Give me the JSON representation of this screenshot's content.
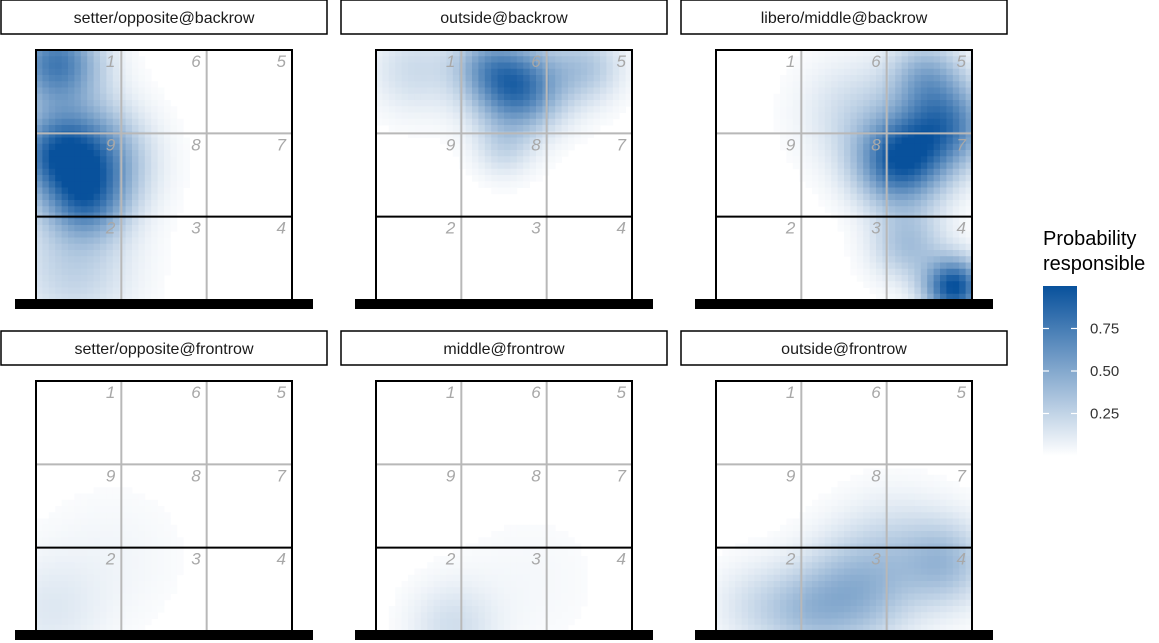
{
  "chart_data": {
    "type": "heatmap",
    "legend": {
      "title_line1": "Probability",
      "title_line2": "responsible",
      "ticks": [
        0.25,
        0.5,
        0.75
      ],
      "tick_labels": [
        "0.25",
        "0.50",
        "0.75"
      ],
      "range": [
        0,
        1
      ],
      "color_low": "#ffffff",
      "color_high": "#08519c"
    },
    "zones": [
      {
        "label": "1",
        "row": 0,
        "col": 0
      },
      {
        "label": "6",
        "row": 0,
        "col": 1
      },
      {
        "label": "5",
        "row": 0,
        "col": 2
      },
      {
        "label": "9",
        "row": 1,
        "col": 0
      },
      {
        "label": "8",
        "row": 1,
        "col": 1
      },
      {
        "label": "7",
        "row": 1,
        "col": 2
      },
      {
        "label": "2",
        "row": 2,
        "col": 0
      },
      {
        "label": "3",
        "row": 2,
        "col": 1
      },
      {
        "label": "4",
        "row": 2,
        "col": 2
      }
    ],
    "panels": [
      {
        "title": "setter/opposite@backrow",
        "hotspots": [
          {
            "x": 0.08,
            "y": 0.95,
            "s": 0.12,
            "v": 0.75
          },
          {
            "x": 0.18,
            "y": 0.55,
            "s": 0.15,
            "v": 0.95
          },
          {
            "x": 0.05,
            "y": 0.6,
            "s": 0.1,
            "v": 0.3
          },
          {
            "x": 0.2,
            "y": 0.38,
            "s": 0.1,
            "v": 0.35
          },
          {
            "x": 0.15,
            "y": 0.12,
            "s": 0.16,
            "v": 0.25
          }
        ]
      },
      {
        "title": "outside@backrow",
        "hotspots": [
          {
            "x": 0.55,
            "y": 0.85,
            "s": 0.12,
            "v": 0.85
          },
          {
            "x": 0.42,
            "y": 0.95,
            "s": 0.09,
            "v": 0.3
          },
          {
            "x": 0.82,
            "y": 0.93,
            "s": 0.1,
            "v": 0.3
          },
          {
            "x": 0.15,
            "y": 0.92,
            "s": 0.12,
            "v": 0.2
          },
          {
            "x": 0.5,
            "y": 0.6,
            "s": 0.08,
            "v": 0.18
          }
        ]
      },
      {
        "title": "libero/middle@backrow",
        "hotspots": [
          {
            "x": 0.72,
            "y": 0.55,
            "s": 0.12,
            "v": 0.9
          },
          {
            "x": 0.9,
            "y": 0.7,
            "s": 0.12,
            "v": 0.7
          },
          {
            "x": 0.82,
            "y": 0.9,
            "s": 0.1,
            "v": 0.4
          },
          {
            "x": 0.93,
            "y": 0.05,
            "s": 0.08,
            "v": 1.0
          },
          {
            "x": 0.75,
            "y": 0.22,
            "s": 0.1,
            "v": 0.35
          },
          {
            "x": 0.55,
            "y": 0.75,
            "s": 0.15,
            "v": 0.2
          }
        ]
      },
      {
        "title": "setter/opposite@frontrow",
        "hotspots": [
          {
            "x": 0.05,
            "y": 0.08,
            "s": 0.15,
            "v": 0.12
          },
          {
            "x": 0.3,
            "y": 0.3,
            "s": 0.2,
            "v": 0.05
          }
        ]
      },
      {
        "title": "middle@frontrow",
        "hotspots": [
          {
            "x": 0.3,
            "y": 0.02,
            "s": 0.12,
            "v": 0.18
          },
          {
            "x": 0.6,
            "y": 0.2,
            "s": 0.2,
            "v": 0.04
          }
        ]
      },
      {
        "title": "outside@frontrow",
        "hotspots": [
          {
            "x": 0.55,
            "y": 0.15,
            "s": 0.15,
            "v": 0.4
          },
          {
            "x": 0.35,
            "y": 0.08,
            "s": 0.12,
            "v": 0.25
          },
          {
            "x": 0.9,
            "y": 0.27,
            "s": 0.12,
            "v": 0.35
          },
          {
            "x": 0.7,
            "y": 0.35,
            "s": 0.15,
            "v": 0.15
          },
          {
            "x": 0.15,
            "y": 0.1,
            "s": 0.12,
            "v": 0.15
          }
        ]
      }
    ]
  }
}
